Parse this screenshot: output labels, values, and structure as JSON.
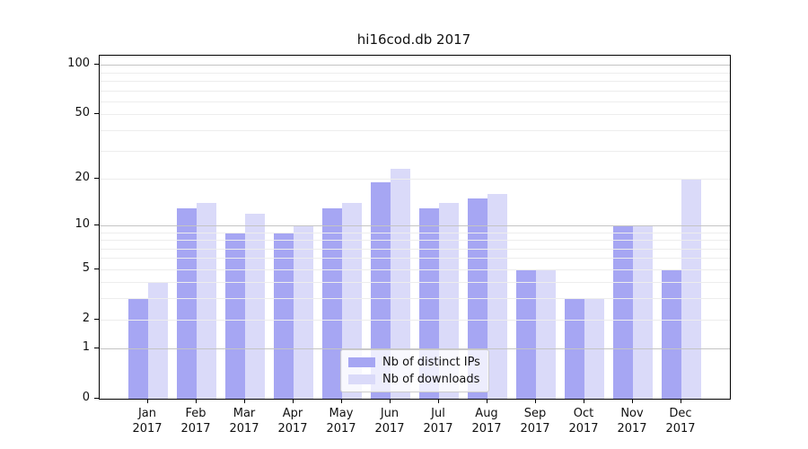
{
  "title": "hi16cod.db 2017",
  "chart_data": {
    "type": "bar",
    "title": "hi16cod.db 2017",
    "categories": [
      "Jan 2017",
      "Feb 2017",
      "Mar 2017",
      "Apr 2017",
      "May 2017",
      "Jun 2017",
      "Jul 2017",
      "Aug 2017",
      "Sep 2017",
      "Oct 2017",
      "Nov 2017",
      "Dec 2017"
    ],
    "series": [
      {
        "name": "Nb of distinct IPs",
        "color": "#a6a6f3",
        "values": [
          3,
          13,
          9,
          9,
          13,
          19,
          13,
          15,
          5,
          3,
          10,
          5
        ]
      },
      {
        "name": "Nb of downloads",
        "color": "#dadaf9",
        "values": [
          4,
          14,
          12,
          10,
          14,
          23,
          14,
          16,
          5,
          3,
          10,
          20
        ]
      }
    ],
    "xlabel": "",
    "ylabel": "",
    "yscale": "log1p",
    "ylim": [
      0,
      114
    ],
    "yticks": [
      0,
      1,
      2,
      5,
      10,
      20,
      50,
      100
    ],
    "minor_yticks": [
      2,
      3,
      4,
      5,
      6,
      7,
      8,
      9,
      20,
      30,
      40,
      50,
      60,
      70,
      80,
      90
    ],
    "major_gridlines": [
      1,
      10,
      100
    ],
    "grid": true,
    "legend_position": "lower center"
  },
  "colors": {
    "spine": "#000000",
    "major_grid": "#c4c4c4",
    "minor_grid": "#ededed",
    "text": "#111111",
    "legend_border": "#cccccc",
    "legend_bg": "rgba(255,255,255,0.8)"
  }
}
